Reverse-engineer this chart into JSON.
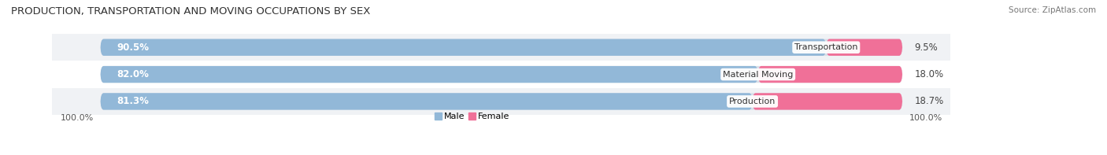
{
  "title": "PRODUCTION, TRANSPORTATION AND MOVING OCCUPATIONS BY SEX",
  "source": "Source: ZipAtlas.com",
  "categories": [
    "Transportation",
    "Material Moving",
    "Production"
  ],
  "male_pct": [
    90.5,
    82.0,
    81.3
  ],
  "female_pct": [
    9.5,
    18.0,
    18.7
  ],
  "male_color": "#92b8d8",
  "female_color": "#f07098",
  "male_label": "Male",
  "female_label": "Female",
  "bg_bar_color": "#dde3ea",
  "bg_bar_color2": "#eaeef2",
  "axis_label_left": "100.0%",
  "axis_label_right": "100.0%",
  "title_fontsize": 9.5,
  "source_fontsize": 7.5,
  "label_fontsize": 8.5,
  "bar_height": 0.62,
  "figsize": [
    14.06,
    1.97
  ],
  "dpi": 100
}
